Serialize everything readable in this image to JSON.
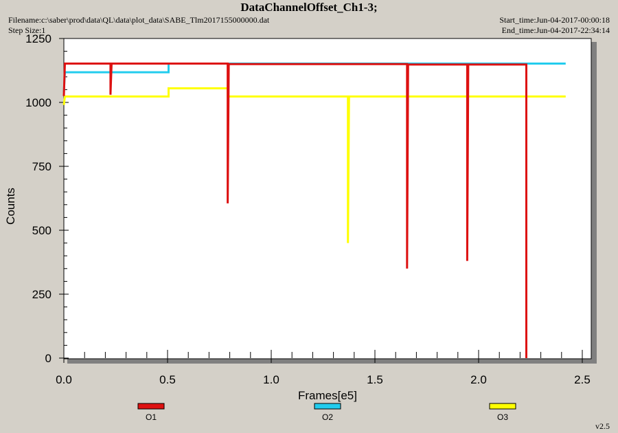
{
  "header": {
    "filename": "Filename:c:\\saber\\prod\\data\\QL\\data\\plot_data\\SABE_Tlm2017155000000.dat",
    "step_size": "Step Size:1",
    "start_time": "Start_time:Jun-04-2017-00:00:18",
    "end_time": "End_time:Jun-04-2017-22:34:14"
  },
  "version": "v2.5",
  "chart_data": {
    "type": "line",
    "title": "DataChannelOffset_Ch1-3;",
    "xlabel": "Frames[e5]",
    "ylabel": "Counts",
    "xlim": [
      0,
      2.5
    ],
    "ylim": [
      0,
      1250
    ],
    "x_ticks": [
      "0.0",
      "0.5",
      "1.0",
      "1.5",
      "2.0",
      "2.5"
    ],
    "y_ticks": [
      "0",
      "250",
      "500",
      "750",
      "1000",
      "1250"
    ],
    "grid": false,
    "legend_position": "bottom",
    "series": [
      {
        "name": "O1",
        "color": "#dd1111",
        "points": [
          [
            0,
            1025
          ],
          [
            0.005,
            1152
          ],
          [
            0.225,
            1152
          ],
          [
            0.225,
            1030
          ],
          [
            0.23,
            1152
          ],
          [
            0.79,
            1152
          ],
          [
            0.79,
            605
          ],
          [
            0.795,
            1150
          ],
          [
            1.655,
            1150
          ],
          [
            1.655,
            350
          ],
          [
            1.66,
            1148
          ],
          [
            1.945,
            1148
          ],
          [
            1.945,
            380
          ],
          [
            1.95,
            1148
          ],
          [
            2.23,
            1148
          ],
          [
            2.23,
            0
          ]
        ]
      },
      {
        "name": "O2",
        "color": "#22ccee",
        "points": [
          [
            0,
            1040
          ],
          [
            0.005,
            1118
          ],
          [
            0.505,
            1118
          ],
          [
            0.505,
            1152
          ],
          [
            2.42,
            1152
          ]
        ]
      },
      {
        "name": "O3",
        "color": "#ffff00",
        "points": [
          [
            0,
            990
          ],
          [
            0.005,
            1023
          ],
          [
            0.505,
            1023
          ],
          [
            0.505,
            1055
          ],
          [
            0.79,
            1055
          ],
          [
            0.79,
            1023
          ],
          [
            1.37,
            1023
          ],
          [
            1.37,
            450
          ],
          [
            1.375,
            1023
          ],
          [
            2.42,
            1023
          ]
        ]
      }
    ]
  }
}
